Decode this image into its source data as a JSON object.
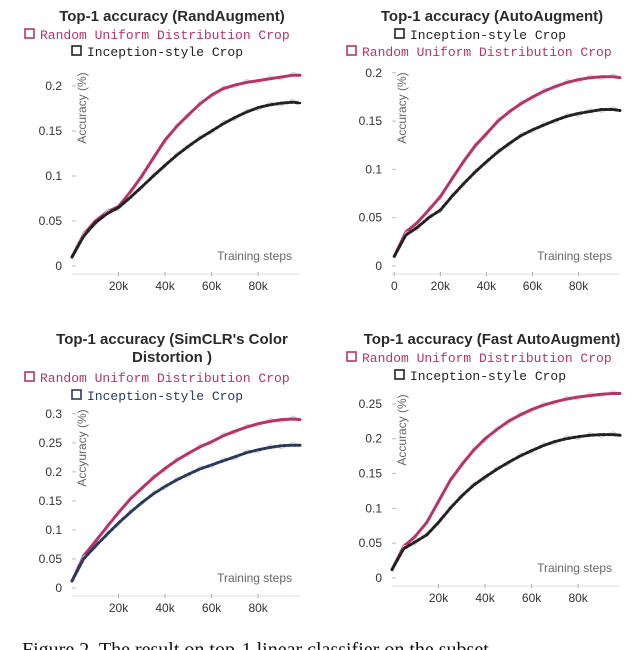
{
  "chart_data": [
    {
      "type": "line",
      "title": [
        "Top-1 accuracy (RandAugment)"
      ],
      "legend": [
        {
          "label": "Random Uniform Distribution Crop",
          "color": "#b5356b"
        },
        {
          "label": "Inception-style Crop",
          "color": "#222222"
        }
      ],
      "ylabel": "Accuracy (%)",
      "xlabel": "Training steps",
      "xlim": [
        0,
        98
      ],
      "ylim": [
        0,
        0.22
      ],
      "xticks": [
        20,
        40,
        60,
        80
      ],
      "xtick_labels": [
        "20k",
        "40k",
        "60k",
        "80k"
      ],
      "yticks": [
        0,
        0.05,
        0.1,
        0.15,
        0.2
      ],
      "ytick_labels": [
        "0",
        "0.05",
        "0.1",
        "0.15",
        "0.2"
      ],
      "series": [
        {
          "name": "Random Uniform Distribution Crop",
          "color": "#b5356b",
          "x": [
            0,
            5,
            10,
            15,
            20,
            25,
            30,
            35,
            40,
            45,
            50,
            55,
            60,
            65,
            70,
            75,
            80,
            85,
            90,
            95,
            98
          ],
          "y": [
            0.01,
            0.035,
            0.05,
            0.06,
            0.066,
            0.082,
            0.1,
            0.12,
            0.14,
            0.155,
            0.168,
            0.18,
            0.19,
            0.197,
            0.201,
            0.204,
            0.206,
            0.208,
            0.21,
            0.212,
            0.212
          ]
        },
        {
          "name": "Inception-style Crop",
          "color": "#222222",
          "x": [
            0,
            5,
            10,
            15,
            20,
            25,
            30,
            35,
            40,
            45,
            50,
            55,
            60,
            65,
            70,
            75,
            80,
            85,
            90,
            95,
            98
          ],
          "y": [
            0.01,
            0.033,
            0.048,
            0.058,
            0.065,
            0.076,
            0.088,
            0.1,
            0.112,
            0.123,
            0.133,
            0.142,
            0.15,
            0.158,
            0.165,
            0.171,
            0.176,
            0.179,
            0.181,
            0.182,
            0.181
          ]
        }
      ]
    },
    {
      "type": "line",
      "title": [
        "Top-1 accuracy (AutoAugment)"
      ],
      "legend": [
        {
          "label": "Inception-style Crop",
          "color": "#222222"
        },
        {
          "label": "Random Uniform Distribution Crop",
          "color": "#b5356b"
        }
      ],
      "ylabel": "Accuracy (%)",
      "xlabel": "Training steps",
      "xlim": [
        -1,
        98
      ],
      "ylim": [
        0,
        0.205
      ],
      "xticks": [
        0,
        20,
        40,
        60,
        80
      ],
      "xtick_labels": [
        "0",
        "20k",
        "40k",
        "60k",
        "80k"
      ],
      "yticks": [
        0,
        0.05,
        0.1,
        0.15,
        0.2
      ],
      "ytick_labels": [
        "0",
        "0.05",
        "0.1",
        "0.15",
        "0.2"
      ],
      "series": [
        {
          "name": "Random Uniform Distribution Crop",
          "color": "#b5356b",
          "x": [
            0,
            5,
            10,
            15,
            20,
            25,
            30,
            35,
            40,
            45,
            50,
            55,
            60,
            65,
            70,
            75,
            80,
            85,
            90,
            95,
            98
          ],
          "y": [
            0.01,
            0.035,
            0.045,
            0.058,
            0.072,
            0.09,
            0.108,
            0.124,
            0.137,
            0.15,
            0.16,
            0.168,
            0.175,
            0.181,
            0.186,
            0.19,
            0.193,
            0.195,
            0.196,
            0.196,
            0.195
          ]
        },
        {
          "name": "Inception-style Crop",
          "color": "#222222",
          "x": [
            0,
            5,
            10,
            15,
            20,
            25,
            30,
            35,
            40,
            45,
            50,
            55,
            60,
            65,
            70,
            75,
            80,
            85,
            90,
            95,
            98
          ],
          "y": [
            0.01,
            0.032,
            0.04,
            0.05,
            0.058,
            0.072,
            0.085,
            0.097,
            0.108,
            0.118,
            0.127,
            0.135,
            0.141,
            0.146,
            0.151,
            0.155,
            0.158,
            0.16,
            0.162,
            0.162,
            0.161
          ]
        }
      ]
    },
    {
      "type": "line",
      "title": [
        "Top-1 accuracy (SimCLR's Color",
        "Distortion )"
      ],
      "legend": [
        {
          "label": "Random Uniform Distribution Crop",
          "color": "#b5356b"
        },
        {
          "label": "Inception-style Crop",
          "color": "#2a3a5c"
        }
      ],
      "ylabel": "Accyuracy (%)",
      "xlabel": "Training steps",
      "xlim": [
        0,
        98
      ],
      "ylim": [
        0,
        0.31
      ],
      "xticks": [
        20,
        40,
        60,
        80
      ],
      "xtick_labels": [
        "20k",
        "40k",
        "60k",
        "80k"
      ],
      "yticks": [
        0,
        0.05,
        0.1,
        0.15,
        0.2,
        0.25,
        0.3
      ],
      "ytick_labels": [
        "0",
        "0.05",
        "0.1",
        "0.15",
        "0.2",
        "0.25",
        "0.3"
      ],
      "series": [
        {
          "name": "Random Uniform Distribution Crop",
          "color": "#b5356b",
          "x": [
            0,
            5,
            10,
            15,
            20,
            25,
            30,
            35,
            40,
            45,
            50,
            55,
            60,
            65,
            70,
            75,
            80,
            85,
            90,
            95,
            98
          ],
          "y": [
            0.012,
            0.055,
            0.08,
            0.105,
            0.13,
            0.153,
            0.172,
            0.19,
            0.206,
            0.22,
            0.232,
            0.243,
            0.252,
            0.262,
            0.27,
            0.277,
            0.283,
            0.287,
            0.29,
            0.291,
            0.29
          ]
        },
        {
          "name": "Inception-style Crop",
          "color": "#2a3a5c",
          "x": [
            0,
            5,
            10,
            15,
            20,
            25,
            30,
            35,
            40,
            45,
            50,
            55,
            60,
            65,
            70,
            75,
            80,
            85,
            90,
            95,
            98
          ],
          "y": [
            0.012,
            0.05,
            0.072,
            0.092,
            0.112,
            0.13,
            0.147,
            0.162,
            0.175,
            0.186,
            0.196,
            0.205,
            0.212,
            0.219,
            0.226,
            0.233,
            0.238,
            0.242,
            0.245,
            0.246,
            0.246
          ]
        }
      ]
    },
    {
      "type": "line",
      "title": [
        "Top-1 accuracy (Fast AutoAugment)"
      ],
      "legend": [
        {
          "label": "Random Uniform Distribution Crop",
          "color": "#b5356b"
        },
        {
          "label": "Inception-style Crop",
          "color": "#222222"
        }
      ],
      "ylabel": "Accuracy (%)",
      "xlabel": "Training steps",
      "xlim": [
        0,
        98
      ],
      "ylim": [
        0,
        0.27
      ],
      "xticks": [
        20,
        40,
        60,
        80
      ],
      "xtick_labels": [
        "20k",
        "40k",
        "60k",
        "80k"
      ],
      "yticks": [
        0,
        0.05,
        0.1,
        0.15,
        0.2,
        0.25
      ],
      "ytick_labels": [
        "0",
        "0.05",
        "0.1",
        "0.15",
        "0.2",
        "0.25"
      ],
      "series": [
        {
          "name": "Random Uniform Distribution Crop",
          "color": "#b5356b",
          "x": [
            0,
            5,
            10,
            15,
            20,
            25,
            30,
            35,
            40,
            45,
            50,
            55,
            60,
            65,
            70,
            75,
            80,
            85,
            90,
            95,
            98
          ],
          "y": [
            0.012,
            0.045,
            0.06,
            0.08,
            0.11,
            0.14,
            0.163,
            0.183,
            0.2,
            0.213,
            0.225,
            0.234,
            0.242,
            0.248,
            0.253,
            0.257,
            0.26,
            0.262,
            0.264,
            0.265,
            0.265
          ]
        },
        {
          "name": "Inception-style Crop",
          "color": "#222222",
          "x": [
            0,
            5,
            10,
            15,
            20,
            25,
            30,
            35,
            40,
            45,
            50,
            55,
            60,
            65,
            70,
            75,
            80,
            85,
            90,
            95,
            98
          ],
          "y": [
            0.012,
            0.042,
            0.052,
            0.062,
            0.08,
            0.1,
            0.118,
            0.133,
            0.145,
            0.156,
            0.166,
            0.175,
            0.183,
            0.19,
            0.196,
            0.2,
            0.203,
            0.205,
            0.206,
            0.206,
            0.205
          ]
        }
      ]
    }
  ],
  "caption": "Figure 2. The result on top-1 linear classifier on the subset"
}
